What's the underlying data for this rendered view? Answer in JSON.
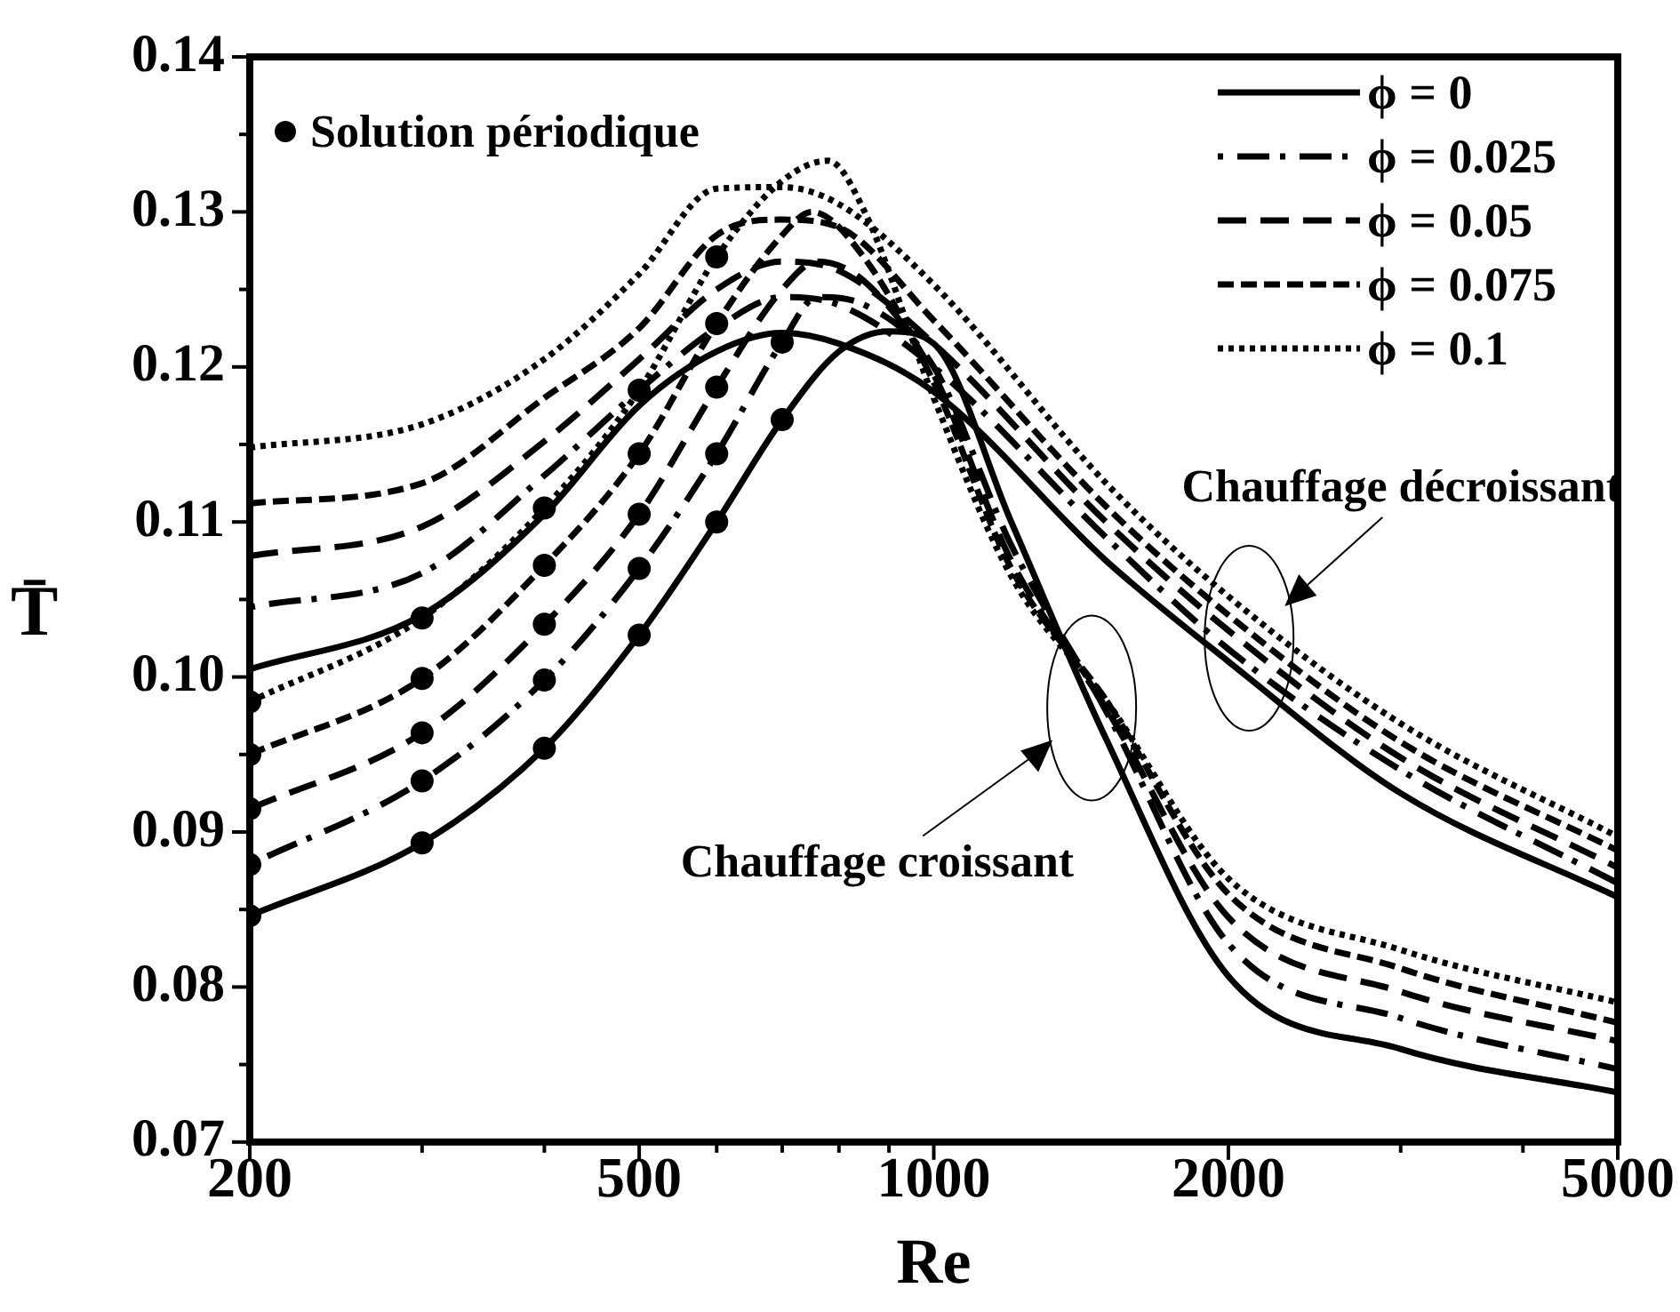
{
  "chart_data": {
    "type": "line",
    "xlabel": "Re",
    "ylabel": "T̄",
    "log": "x",
    "xlim": [
      200,
      5000
    ],
    "ylim": [
      0.07,
      0.14
    ],
    "xticks": [
      200,
      {
        "value": 300,
        "label": null
      },
      {
        "value": 400,
        "label": null
      },
      500,
      {
        "value": 600,
        "label": null
      },
      {
        "value": 700,
        "label": null
      },
      {
        "value": 800,
        "label": null
      },
      {
        "value": 900,
        "label": null
      },
      1000,
      2000,
      {
        "value": 3000,
        "label": null
      },
      {
        "value": 4000,
        "label": null
      },
      5000
    ],
    "yticks": [
      0.07,
      {
        "value": 0.075,
        "label": null
      },
      {
        "value": 0.08,
        "label": "0.08"
      },
      {
        "value": 0.085,
        "label": null
      },
      0.09,
      {
        "value": 0.095,
        "label": null
      },
      {
        "value": 0.1,
        "label": "0.10"
      },
      {
        "value": 0.105,
        "label": null
      },
      0.11,
      {
        "value": 0.115,
        "label": null
      },
      0.12,
      {
        "value": 0.125,
        "label": null
      },
      0.13,
      {
        "value": 0.135,
        "label": null
      },
      0.14
    ],
    "grid": false,
    "legend": "top right",
    "series": [
      {
        "name": "ϕ = 0",
        "color": "#000000",
        "line_style": "solid",
        "marker": "none",
        "x": [
          200,
          300,
          400,
          500,
          600,
          700,
          800,
          900,
          1000,
          1200,
          1500,
          2000,
          3000,
          5000
        ],
        "values": [
          0.0846,
          0.0893,
          0.0954,
          0.1027,
          0.11,
          0.1166,
          0.121,
          0.1223,
          0.1215,
          0.11,
          0.096,
          0.0807,
          0.076,
          0.0732
        ]
      },
      {
        "name": "ϕ = 0.025",
        "color": "#000000",
        "line_style": "dashdot",
        "marker": "none",
        "x": [
          200,
          300,
          400,
          500,
          600,
          700,
          760,
          850,
          1000,
          1200,
          1500,
          2000,
          3000,
          5000
        ],
        "values": [
          0.0879,
          0.0933,
          0.0998,
          0.107,
          0.1144,
          0.1216,
          0.1245,
          0.124,
          0.12,
          0.1085,
          0.0978,
          0.0828,
          0.078,
          0.0747
        ]
      },
      {
        "name": "ϕ = 0.05",
        "color": "#000000",
        "line_style": "longdash",
        "marker": "none",
        "x": [
          200,
          300,
          400,
          500,
          600,
          700,
          760,
          850,
          1000,
          1200,
          1500,
          2000,
          3000,
          5000
        ],
        "values": [
          0.0915,
          0.0964,
          0.1034,
          0.1105,
          0.1187,
          0.125,
          0.1268,
          0.1255,
          0.1195,
          0.1075,
          0.098,
          0.0845,
          0.0797,
          0.0765
        ]
      },
      {
        "name": "ϕ = 0.075",
        "color": "#000000",
        "line_style": "dashed",
        "marker": "none",
        "x": [
          200,
          300,
          400,
          500,
          600,
          700,
          750,
          850,
          1000,
          1200,
          1500,
          2000,
          3000,
          5000
        ],
        "values": [
          0.095,
          0.0999,
          0.1072,
          0.1144,
          0.1228,
          0.1285,
          0.13,
          0.127,
          0.119,
          0.107,
          0.0985,
          0.086,
          0.0812,
          0.0777
        ]
      },
      {
        "name": "ϕ = 0.1",
        "color": "#000000",
        "line_style": "dotted",
        "marker": "none",
        "x": [
          200,
          300,
          400,
          500,
          600,
          700,
          780,
          850,
          1000,
          1200,
          1500,
          2000,
          3000,
          5000
        ],
        "values": [
          0.0984,
          0.1038,
          0.1109,
          0.1185,
          0.1271,
          0.132,
          0.1333,
          0.13,
          0.118,
          0.1065,
          0.0985,
          0.087,
          0.0824,
          0.079
        ]
      },
      {
        "color": "#000000",
        "line_style": "solid",
        "marker": "none",
        "x": [
          200,
          300,
          400,
          500,
          600,
          700,
          800,
          1000,
          1500,
          2000,
          3000,
          5000
        ],
        "values": [
          0.1005,
          0.104,
          0.1105,
          0.1175,
          0.121,
          0.1222,
          0.1215,
          0.1184,
          0.1075,
          0.101,
          0.0925,
          0.0858
        ]
      },
      {
        "color": "#000000",
        "line_style": "dashdot",
        "marker": "none",
        "x": [
          200,
          300,
          400,
          500,
          600,
          700,
          800,
          1000,
          1500,
          2000,
          3000,
          5000
        ],
        "values": [
          0.1045,
          0.1067,
          0.113,
          0.1185,
          0.1225,
          0.1245,
          0.124,
          0.12,
          0.109,
          0.1018,
          0.094,
          0.0867
        ]
      },
      {
        "color": "#000000",
        "line_style": "longdash",
        "marker": "none",
        "x": [
          200,
          300,
          400,
          500,
          600,
          700,
          800,
          1000,
          1500,
          2000,
          3000,
          5000
        ],
        "values": [
          0.1078,
          0.1097,
          0.1152,
          0.1205,
          0.125,
          0.1268,
          0.1262,
          0.1215,
          0.11,
          0.103,
          0.0948,
          0.0877
        ]
      },
      {
        "color": "#000000",
        "line_style": "dashed",
        "marker": "none",
        "x": [
          200,
          300,
          400,
          500,
          600,
          700,
          800,
          1000,
          1500,
          2000,
          3000,
          5000
        ],
        "values": [
          0.1112,
          0.1125,
          0.118,
          0.1225,
          0.1285,
          0.1295,
          0.129,
          0.123,
          0.111,
          0.104,
          0.0958,
          0.0888
        ]
      },
      {
        "color": "#000000",
        "line_style": "dotted",
        "marker": "none",
        "x": [
          200,
          300,
          400,
          500,
          600,
          700,
          800,
          1000,
          1500,
          2000,
          3000,
          5000
        ],
        "values": [
          0.1148,
          0.1163,
          0.1205,
          0.126,
          0.1315,
          0.1316,
          0.1305,
          0.1253,
          0.1125,
          0.1052,
          0.097,
          0.0897
        ]
      },
      {
        "name": "Solution périodique",
        "type": "scatter",
        "color": "#000000",
        "marker": "circle",
        "x": [
          200,
          200,
          200,
          200,
          200,
          300,
          300,
          300,
          300,
          300,
          400,
          400,
          400,
          400,
          400,
          500,
          500,
          500,
          500,
          500,
          600,
          600,
          600,
          600,
          600,
          700,
          700
        ],
        "values": [
          0.0984,
          0.095,
          0.0915,
          0.0879,
          0.0846,
          0.1038,
          0.0999,
          0.0964,
          0.0933,
          0.0893,
          0.1109,
          0.1072,
          0.1034,
          0.0998,
          0.0954,
          0.1185,
          0.1144,
          0.1105,
          0.107,
          0.1027,
          0.1271,
          0.1228,
          0.1187,
          0.1144,
          0.11,
          0.1216,
          0.1166
        ]
      }
    ],
    "annotations": [
      {
        "text": "Chauffage croissant",
        "x": 1450,
        "y": 0.098
      },
      {
        "text": "Chauffage décroissant",
        "x": 2100,
        "y": 0.1025
      }
    ]
  }
}
